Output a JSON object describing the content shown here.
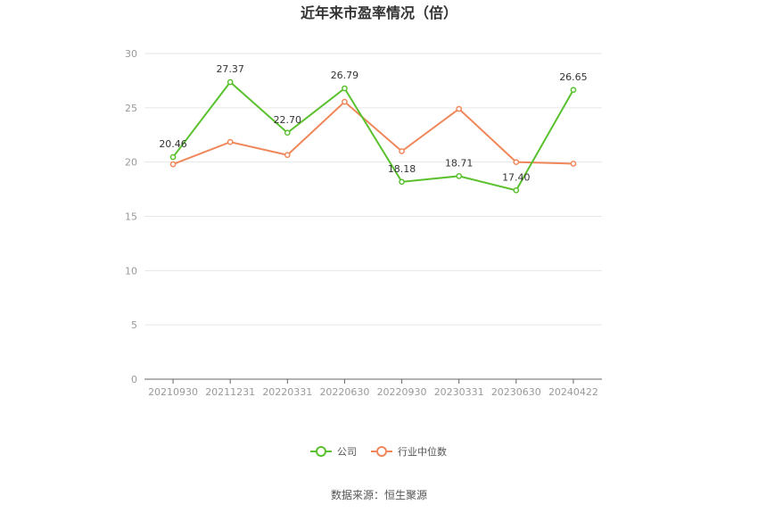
{
  "chart_data": {
    "type": "line",
    "title": "近年来市盈率情况（倍）",
    "categories": [
      "20210930",
      "20211231",
      "20220331",
      "20220630",
      "20220930",
      "20230331",
      "20230630",
      "20240422"
    ],
    "series": [
      {
        "name": "公司",
        "color": "#5ac12e",
        "values": [
          20.46,
          27.37,
          22.7,
          26.79,
          18.18,
          18.71,
          17.4,
          26.65
        ],
        "labels": [
          "20.46",
          "27.37",
          "22.70",
          "26.79",
          "18.18",
          "18.71",
          "17.40",
          "26.65"
        ]
      },
      {
        "name": "行业中位数",
        "color": "#f0875a",
        "values": [
          19.8,
          21.85,
          20.65,
          25.55,
          21.0,
          24.9,
          20.0,
          19.85
        ]
      }
    ],
    "ylim": [
      0,
      30
    ],
    "yticks": [
      0,
      5,
      10,
      15,
      20,
      25,
      30
    ],
    "grid": true,
    "legend": "bottom-center"
  },
  "source": "数据来源：恒生聚源"
}
